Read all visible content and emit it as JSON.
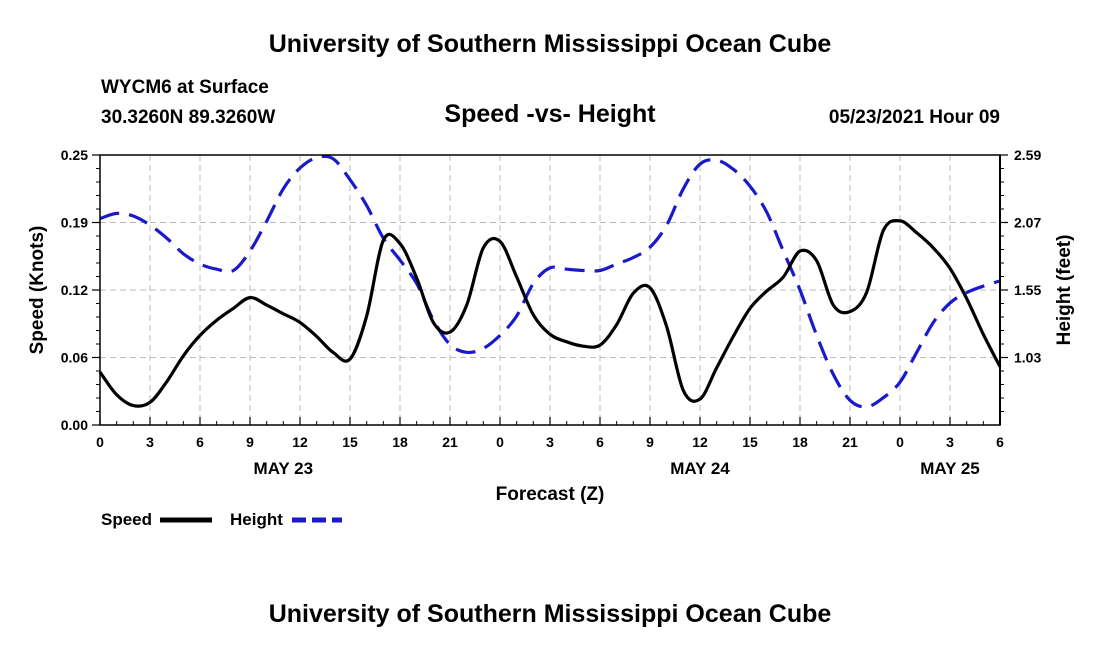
{
  "header": {
    "title": "University of Southern Mississippi Ocean Cube",
    "station": "WYCM6 at Surface",
    "coordinates": "30.3260N  89.3260W",
    "datetime": "05/23/2021 Hour 09"
  },
  "footer": {
    "title": "University of Southern Mississippi Ocean Cube"
  },
  "colors": {
    "speed": "#000000",
    "height": "#1a1acc",
    "grid": "#bbbbbb"
  },
  "chart_data": {
    "type": "line",
    "title": "Speed -vs- Height",
    "xlabel": "Forecast (Z)",
    "ylabel_left": "Speed (Knots)",
    "ylabel_right": "Height (feet)",
    "x_range_hours": [
      0,
      54
    ],
    "x_ticks": [
      {
        "h": 0,
        "label": "0"
      },
      {
        "h": 3,
        "label": "3"
      },
      {
        "h": 6,
        "label": "6"
      },
      {
        "h": 9,
        "label": "9"
      },
      {
        "h": 12,
        "label": "12"
      },
      {
        "h": 15,
        "label": "15"
      },
      {
        "h": 18,
        "label": "18"
      },
      {
        "h": 21,
        "label": "21"
      },
      {
        "h": 24,
        "label": "0"
      },
      {
        "h": 27,
        "label": "3"
      },
      {
        "h": 30,
        "label": "6"
      },
      {
        "h": 33,
        "label": "9"
      },
      {
        "h": 36,
        "label": "12"
      },
      {
        "h": 39,
        "label": "15"
      },
      {
        "h": 42,
        "label": "18"
      },
      {
        "h": 45,
        "label": "21"
      },
      {
        "h": 48,
        "label": "0"
      },
      {
        "h": 51,
        "label": "3"
      },
      {
        "h": 54,
        "label": "6"
      }
    ],
    "date_labels": [
      {
        "h": 11,
        "label": "MAY 23"
      },
      {
        "h": 36,
        "label": "MAY 24"
      },
      {
        "h": 51,
        "label": "MAY 25"
      }
    ],
    "y_left": {
      "range": [
        0,
        0.25
      ],
      "ticks": [
        "0.00",
        "0.06",
        "0.12",
        "0.19",
        "0.25"
      ],
      "tick_values": [
        0,
        0.0625,
        0.125,
        0.1875,
        0.25
      ]
    },
    "y_right": {
      "range": [
        0.51,
        2.59
      ],
      "ticks": [
        "1.03",
        "1.55",
        "2.07",
        "2.59"
      ],
      "tick_values": [
        1.03,
        1.55,
        2.07,
        2.59
      ]
    },
    "legend": [
      {
        "name": "Speed",
        "style": "solid"
      },
      {
        "name": "Height",
        "style": "dashed"
      }
    ],
    "series": [
      {
        "name": "Speed",
        "units": "Knots",
        "axis": "left",
        "x": [
          0,
          1,
          2,
          3,
          4,
          5,
          6,
          7,
          8,
          9,
          10,
          11,
          12,
          13,
          14,
          15,
          16,
          17,
          18,
          19,
          20,
          21,
          22,
          23,
          24,
          25,
          26,
          27,
          28,
          29,
          30,
          31,
          32,
          33,
          34,
          35,
          36,
          37,
          38,
          39,
          40,
          41,
          42,
          43,
          44,
          45,
          46,
          47,
          48,
          49,
          50,
          51,
          52,
          53,
          54
        ],
        "values": [
          0.049,
          0.028,
          0.018,
          0.021,
          0.04,
          0.064,
          0.083,
          0.097,
          0.108,
          0.118,
          0.111,
          0.103,
          0.095,
          0.082,
          0.067,
          0.061,
          0.101,
          0.171,
          0.168,
          0.136,
          0.095,
          0.086,
          0.111,
          0.164,
          0.17,
          0.137,
          0.102,
          0.084,
          0.077,
          0.073,
          0.074,
          0.093,
          0.122,
          0.127,
          0.091,
          0.032,
          0.024,
          0.053,
          0.082,
          0.108,
          0.124,
          0.137,
          0.161,
          0.152,
          0.111,
          0.105,
          0.123,
          0.18,
          0.189,
          0.178,
          0.164,
          0.145,
          0.117,
          0.084,
          0.054
        ]
      },
      {
        "name": "Height",
        "units": "feet",
        "axis": "right",
        "x": [
          0,
          1,
          2,
          3,
          4,
          5,
          6,
          7,
          8,
          9,
          10,
          11,
          12,
          13,
          14,
          15,
          16,
          17,
          18,
          19,
          20,
          21,
          22,
          23,
          24,
          25,
          26,
          27,
          28,
          29,
          30,
          31,
          32,
          33,
          34,
          35,
          36,
          37,
          38,
          39,
          40,
          41,
          42,
          43,
          44,
          45,
          46,
          47,
          48,
          49,
          50,
          51,
          52,
          53,
          54
        ],
        "values": [
          2.1,
          2.14,
          2.12,
          2.05,
          1.95,
          1.83,
          1.75,
          1.71,
          1.7,
          1.85,
          2.08,
          2.33,
          2.49,
          2.57,
          2.56,
          2.4,
          2.2,
          1.95,
          1.78,
          1.6,
          1.32,
          1.13,
          1.07,
          1.1,
          1.2,
          1.35,
          1.6,
          1.72,
          1.71,
          1.7,
          1.7,
          1.75,
          1.8,
          1.88,
          2.05,
          2.33,
          2.52,
          2.55,
          2.48,
          2.35,
          2.15,
          1.85,
          1.55,
          1.2,
          0.9,
          0.7,
          0.65,
          0.72,
          0.84,
          1.07,
          1.3,
          1.45,
          1.53,
          1.58,
          1.62
        ]
      }
    ]
  }
}
